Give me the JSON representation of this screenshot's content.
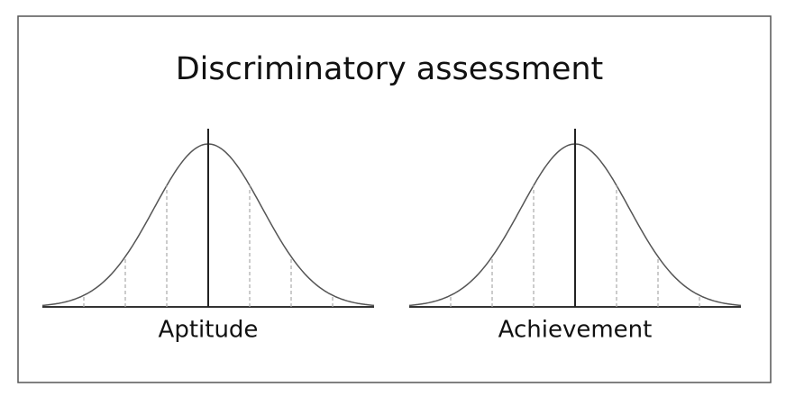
{
  "title": "Discriminatory assessment",
  "curves": [
    {
      "label": "Aptitude"
    },
    {
      "label": "Achievement"
    }
  ]
}
